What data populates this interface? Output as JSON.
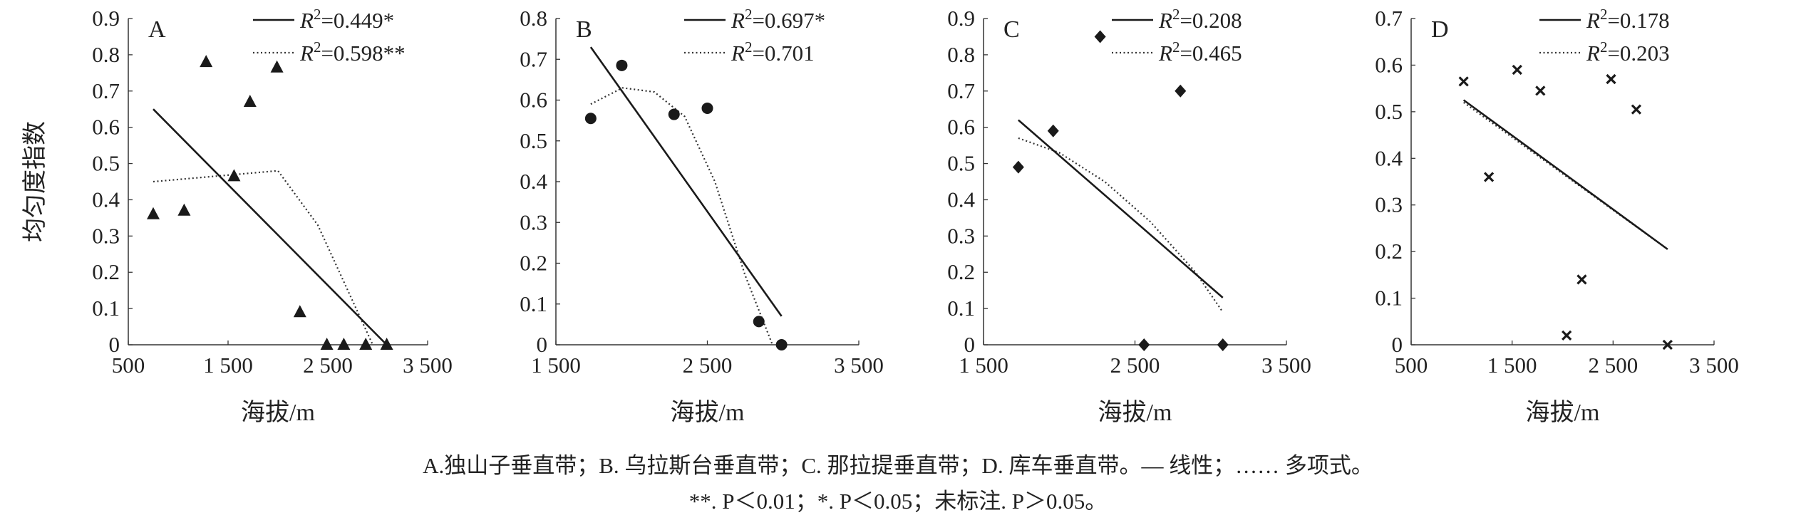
{
  "figure": {
    "ylabel": "均匀度指数",
    "caption_line1": "A.独山子垂直带；B. 乌拉斯台垂直带；C. 那拉提垂直带；D. 库车垂直带。— 线性；…… 多项式。",
    "caption_line2": "**. P＜0.01；*. P＜0.05；未标注. P＞0.05。"
  },
  "chart_data": [
    {
      "type": "scatter",
      "panel": "A",
      "marker": "triangle",
      "xlabel": "海拔/m",
      "xlim": [
        500,
        3500
      ],
      "xticks": [
        500,
        1500,
        2500,
        3500
      ],
      "xtick_labels": [
        "500",
        "1 500",
        "2 500",
        "3 500"
      ],
      "ylim": [
        0,
        0.9
      ],
      "yticks": [
        0,
        0.1,
        0.2,
        0.3,
        0.4,
        0.5,
        0.6,
        0.7,
        0.8,
        0.9
      ],
      "ytick_labels": [
        "0",
        "0.1",
        "0.2",
        "0.3",
        "0.4",
        "0.5",
        "0.6",
        "0.7",
        "0.8",
        "0.9"
      ],
      "points": [
        {
          "x": 750,
          "y": 0.36
        },
        {
          "x": 1060,
          "y": 0.37
        },
        {
          "x": 1280,
          "y": 0.78
        },
        {
          "x": 1560,
          "y": 0.465
        },
        {
          "x": 1720,
          "y": 0.67
        },
        {
          "x": 1990,
          "y": 0.765
        },
        {
          "x": 2220,
          "y": 0.09
        },
        {
          "x": 2490,
          "y": 0.0
        },
        {
          "x": 2660,
          "y": 0.0
        },
        {
          "x": 2880,
          "y": 0.0
        },
        {
          "x": 3090,
          "y": 0.0
        }
      ],
      "linear": {
        "x": [
          750,
          3090
        ],
        "y": [
          0.65,
          0.0
        ]
      },
      "poly": {
        "x": [
          750,
          2000,
          2400,
          2800,
          2950
        ],
        "y": [
          0.45,
          0.48,
          0.33,
          0.09,
          0.0
        ]
      },
      "legend": {
        "linear_r2": "=0.449*",
        "poly_r2": "=0.598**"
      }
    },
    {
      "type": "scatter",
      "panel": "B",
      "marker": "circle",
      "xlabel": "海拔/m",
      "xlim": [
        1500,
        3500
      ],
      "xticks": [
        1500,
        2500,
        3500
      ],
      "xtick_labels": [
        "1 500",
        "2 500",
        "3 500"
      ],
      "ylim": [
        0,
        0.8
      ],
      "yticks": [
        0,
        0.1,
        0.2,
        0.3,
        0.4,
        0.5,
        0.6,
        0.7,
        0.8
      ],
      "ytick_labels": [
        "0",
        "0.1",
        "0.2",
        "0.3",
        "0.4",
        "0.5",
        "0.6",
        "0.7",
        "0.8"
      ],
      "points": [
        {
          "x": 1730,
          "y": 0.555
        },
        {
          "x": 1935,
          "y": 0.685
        },
        {
          "x": 2280,
          "y": 0.565
        },
        {
          "x": 2500,
          "y": 0.58
        },
        {
          "x": 2840,
          "y": 0.057
        },
        {
          "x": 2990,
          "y": 0.0
        }
      ],
      "linear": {
        "x": [
          1730,
          2990
        ],
        "y": [
          0.73,
          0.07
        ]
      },
      "poly": {
        "x": [
          1730,
          1940,
          2150,
          2350,
          2550,
          2750,
          2930
        ],
        "y": [
          0.59,
          0.63,
          0.62,
          0.56,
          0.4,
          0.17,
          0.0
        ]
      },
      "legend": {
        "linear_r2": "=0.697*",
        "poly_r2": "=0.701"
      }
    },
    {
      "type": "scatter",
      "panel": "C",
      "marker": "diamond",
      "xlabel": "海拔/m",
      "xlim": [
        1500,
        3500
      ],
      "xticks": [
        1500,
        2500,
        3500
      ],
      "xtick_labels": [
        "1 500",
        "2 500",
        "3 500"
      ],
      "ylim": [
        0,
        0.9
      ],
      "yticks": [
        0,
        0.1,
        0.2,
        0.3,
        0.4,
        0.5,
        0.6,
        0.7,
        0.8,
        0.9
      ],
      "ytick_labels": [
        "0",
        "0.1",
        "0.2",
        "0.3",
        "0.4",
        "0.5",
        "0.6",
        "0.7",
        "0.8",
        "0.9"
      ],
      "points": [
        {
          "x": 1730,
          "y": 0.49
        },
        {
          "x": 1960,
          "y": 0.59
        },
        {
          "x": 2270,
          "y": 0.85
        },
        {
          "x": 2560,
          "y": 0.0
        },
        {
          "x": 2800,
          "y": 0.7
        },
        {
          "x": 3080,
          "y": 0.0
        }
      ],
      "linear": {
        "x": [
          1730,
          3080
        ],
        "y": [
          0.62,
          0.13
        ]
      },
      "poly": {
        "x": [
          1730,
          2000,
          2300,
          2600,
          2900,
          3080
        ],
        "y": [
          0.57,
          0.53,
          0.45,
          0.34,
          0.2,
          0.09
        ]
      },
      "legend": {
        "linear_r2": "=0.208",
        "poly_r2": "=0.465"
      }
    },
    {
      "type": "scatter",
      "panel": "D",
      "marker": "x",
      "xlabel": "海拔/m",
      "xlim": [
        500,
        3500
      ],
      "xticks": [
        500,
        1500,
        2500,
        3500
      ],
      "xtick_labels": [
        "500",
        "1 500",
        "2 500",
        "3 500"
      ],
      "ylim": [
        0,
        0.7
      ],
      "yticks": [
        0,
        0.1,
        0.2,
        0.3,
        0.4,
        0.5,
        0.6,
        0.7
      ],
      "ytick_labels": [
        "0",
        "0.1",
        "0.2",
        "0.3",
        "0.4",
        "0.5",
        "0.6",
        "0.7"
      ],
      "points": [
        {
          "x": 1020,
          "y": 0.565
        },
        {
          "x": 1270,
          "y": 0.36
        },
        {
          "x": 1550,
          "y": 0.59
        },
        {
          "x": 1780,
          "y": 0.545
        },
        {
          "x": 2040,
          "y": 0.02
        },
        {
          "x": 2190,
          "y": 0.14
        },
        {
          "x": 2480,
          "y": 0.57
        },
        {
          "x": 2730,
          "y": 0.505
        },
        {
          "x": 3040,
          "y": 0.0
        }
      ],
      "linear": {
        "x": [
          1020,
          3040
        ],
        "y": [
          0.525,
          0.205
        ]
      },
      "poly": {
        "x": [
          1020,
          3040
        ],
        "y": [
          0.52,
          0.205
        ]
      },
      "legend": {
        "linear_r2": "=0.178",
        "poly_r2": "=0.203"
      }
    }
  ]
}
